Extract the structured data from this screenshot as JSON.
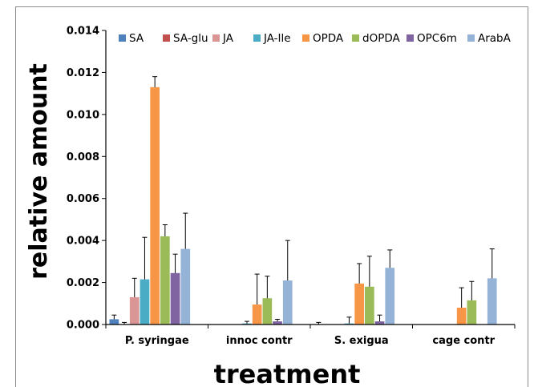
{
  "chart_data": {
    "type": "bar",
    "title": "",
    "xlabel": "treatment",
    "ylabel": "relative amount",
    "ylim": [
      0,
      0.014
    ],
    "yticks": [
      "0.000",
      "0.002",
      "0.004",
      "0.006",
      "0.008",
      "0.010",
      "0.012",
      "0.014"
    ],
    "categories": [
      "P. syringae",
      "innoc contr",
      "S. exigua",
      "cage contr"
    ],
    "legend_position": "top",
    "series": [
      {
        "name": "SA",
        "color": "#4F81BD",
        "values": [
          0.00025,
          0.0,
          0.0,
          0.0
        ],
        "errors": [
          0.0002,
          0.0,
          0.0001,
          0.0
        ]
      },
      {
        "name": "SA-glu",
        "color": "#C0504D",
        "values": [
          0.0,
          0.0,
          0.0,
          0.0
        ],
        "errors": [
          0.0001,
          0.0,
          0.0,
          0.0
        ]
      },
      {
        "name": "JA",
        "color": "#D99694",
        "values": [
          0.0013,
          0.0,
          0.0,
          0.0
        ],
        "errors": [
          0.0009,
          0.0,
          0.0,
          0.0
        ]
      },
      {
        "name": "JA-Ile",
        "color": "#4BACC6",
        "values": [
          0.00215,
          5e-05,
          5e-05,
          0.0
        ],
        "errors": [
          0.002,
          0.0001,
          0.0003,
          0.0
        ]
      },
      {
        "name": "OPDA",
        "color": "#F79646",
        "values": [
          0.0113,
          0.00095,
          0.00195,
          0.0008
        ],
        "errors": [
          0.0005,
          0.00145,
          0.00095,
          0.00095
        ]
      },
      {
        "name": "dOPDA",
        "color": "#9BBB59",
        "values": [
          0.0042,
          0.00125,
          0.0018,
          0.00115
        ],
        "errors": [
          0.00055,
          0.00105,
          0.00145,
          0.0009
        ]
      },
      {
        "name": "OPC6m",
        "color": "#8064A2",
        "values": [
          0.00245,
          0.00015,
          0.00015,
          0.0
        ],
        "errors": [
          0.0009,
          0.0001,
          0.0003,
          0.0
        ]
      },
      {
        "name": "ArabA",
        "color": "#95B3D7",
        "values": [
          0.0036,
          0.0021,
          0.0027,
          0.0022
        ],
        "errors": [
          0.0017,
          0.0019,
          0.00085,
          0.0014
        ]
      }
    ]
  }
}
